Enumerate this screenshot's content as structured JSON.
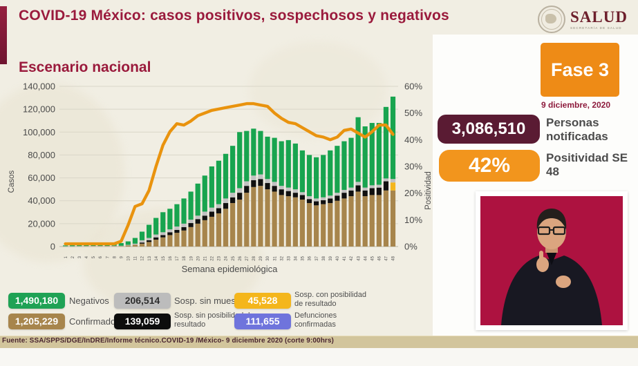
{
  "header": {
    "title": "COVID-19 México: casos positivos, sospechosos y negativos",
    "logo": {
      "name": "SALUD",
      "subtitle": "SECRETARÍA DE SALUD"
    }
  },
  "section_title": "Escenario nacional",
  "phase": {
    "label": "Fase 3",
    "date": "9 diciembre, 2020"
  },
  "stats": [
    {
      "value": "3,086,510",
      "label": "Personas notificadas",
      "color": "#5a1b33"
    },
    {
      "value": "42%",
      "label": "Positividad SE 48",
      "color": "#f2951d"
    }
  ],
  "chart_data": {
    "type": "combo-stacked-bar-line",
    "title": "Escenario nacional",
    "xlabel": "Semana epidemiológica",
    "ylabel_left": "Casos",
    "ylabel_right": "Positividad",
    "ylim_left": [
      0,
      140000
    ],
    "ylim_right": [
      0,
      60
    ],
    "grid": true,
    "yticks_left": [
      "0",
      "20,000",
      "40,000",
      "60,000",
      "80,000",
      "100,000",
      "120,000",
      "140,000"
    ],
    "yticks_right": [
      "0%",
      "10%",
      "20%",
      "30%",
      "40%",
      "50%",
      "60%"
    ],
    "categories": [
      "1",
      "2",
      "3",
      "4",
      "5",
      "6",
      "7",
      "8",
      "9",
      "10",
      "11",
      "12",
      "13",
      "14",
      "15",
      "16",
      "17",
      "18",
      "19",
      "20",
      "21",
      "22",
      "23",
      "24",
      "25",
      "26",
      "27",
      "28",
      "29",
      "30",
      "31",
      "32",
      "33",
      "34",
      "35",
      "36",
      "37",
      "38",
      "39",
      "40",
      "41",
      "42",
      "43",
      "44",
      "45",
      "46",
      "47",
      "48"
    ],
    "series": [
      {
        "name": "Confirmados",
        "color": "#a7854c",
        "values": [
          200,
          200,
          300,
          300,
          400,
          400,
          400,
          500,
          500,
          1000,
          1500,
          2500,
          4000,
          6000,
          8000,
          10000,
          12000,
          14000,
          17000,
          20000,
          23000,
          26000,
          29000,
          33000,
          38000,
          41000,
          47000,
          52000,
          53000,
          50000,
          48000,
          45000,
          44000,
          43000,
          41000,
          38000,
          36000,
          37000,
          38000,
          40000,
          42000,
          44000,
          48000,
          44000,
          45000,
          45000,
          49000,
          49000
        ]
      },
      {
        "name": "Sosp. sin posibilidad de resultado",
        "color": "#101010",
        "values": [
          0,
          0,
          0,
          0,
          0,
          0,
          0,
          0,
          0,
          0,
          0,
          1000,
          1500,
          2000,
          2000,
          2500,
          2500,
          3000,
          3500,
          4000,
          4000,
          4500,
          4500,
          5000,
          5000,
          6000,
          6000,
          6000,
          6000,
          5500,
          5000,
          5000,
          4500,
          4000,
          4000,
          3500,
          3500,
          3500,
          4000,
          4500,
          5000,
          5000,
          5500,
          5000,
          6000,
          6500,
          8000,
          0
        ]
      },
      {
        "name": "Sosp. con posibilidad de resultado",
        "color": "#f4b61c",
        "values": [
          0,
          0,
          0,
          0,
          0,
          0,
          0,
          0,
          0,
          0,
          0,
          0,
          0,
          0,
          0,
          0,
          0,
          0,
          0,
          0,
          0,
          0,
          0,
          0,
          0,
          0,
          0,
          0,
          0,
          0,
          0,
          0,
          0,
          0,
          0,
          0,
          0,
          0,
          0,
          0,
          0,
          0,
          0,
          0,
          0,
          0,
          0,
          7000
        ]
      },
      {
        "name": "Sosp. sin muestra",
        "color": "#c2c2c2",
        "values": [
          100,
          100,
          100,
          200,
          200,
          200,
          200,
          200,
          200,
          500,
          1000,
          2000,
          2000,
          2500,
          2500,
          2500,
          3000,
          3000,
          3000,
          3000,
          3500,
          3500,
          3500,
          4000,
          4000,
          4000,
          4000,
          4000,
          4000,
          3500,
          3500,
          3000,
          3000,
          3000,
          2500,
          2500,
          2500,
          2500,
          2500,
          2500,
          2500,
          2500,
          3000,
          2500,
          2500,
          2500,
          2500,
          3000
        ]
      },
      {
        "name": "Negativos",
        "color": "#18a44f",
        "values": [
          700,
          900,
          1100,
          1500,
          1600,
          1600,
          1400,
          1800,
          2300,
          3000,
          5000,
          7500,
          11500,
          14500,
          17500,
          18000,
          19500,
          22000,
          24500,
          28000,
          31500,
          36000,
          38000,
          39000,
          41000,
          49000,
          44000,
          41000,
          38000,
          37000,
          38500,
          39000,
          41500,
          40000,
          36500,
          36000,
          36000,
          37000,
          39500,
          41000,
          42500,
          43500,
          56500,
          53500,
          54500,
          54000,
          62500,
          72000
        ]
      }
    ],
    "line": {
      "name": "Positividad",
      "color": "#e9930e",
      "values": [
        1,
        1,
        1,
        1,
        1,
        1,
        1,
        1,
        2,
        8,
        15,
        16,
        21,
        30,
        38,
        43,
        46,
        45.5,
        47,
        49,
        50,
        51,
        51.5,
        52,
        52.5,
        53,
        53.5,
        53.5,
        53,
        52.5,
        50,
        48,
        46.5,
        46,
        44.5,
        43,
        41.5,
        41,
        40,
        41,
        43.5,
        44,
        42.5,
        41,
        43,
        45.5,
        45.5,
        42
      ]
    }
  },
  "legend": {
    "items": [
      {
        "value": "1,490,180",
        "label": "Negativos",
        "color": "#1fa255",
        "text_color": "#ffffff"
      },
      {
        "value": "1,205,229",
        "label": "Confirmados",
        "color": "#a7854c",
        "text_color": "#ffffff"
      },
      {
        "value": "206,514",
        "label": "Sosp. sin muestra",
        "color": "#bcbcbc",
        "text_color": "#2e2e2e"
      },
      {
        "value": "139,059",
        "label": "Sosp. sin posibilidad de resultado",
        "color": "#0d0d0d",
        "text_color": "#ffffff"
      },
      {
        "value": "45,528",
        "label": "Sosp. con posibilidad de resultado",
        "color": "#f4b61c",
        "text_color": "#ffffff"
      },
      {
        "value": "111,655",
        "label": "Defunciones confirmadas",
        "color": "#6f74dc",
        "text_color": "#ffffff"
      }
    ]
  },
  "footer": {
    "source": "Fuente: SSA/SPPS/DGE/InDRE/Informe técnico.COVID-19 /México- 9 diciembre 2020 (corte 9:00hrs)"
  }
}
